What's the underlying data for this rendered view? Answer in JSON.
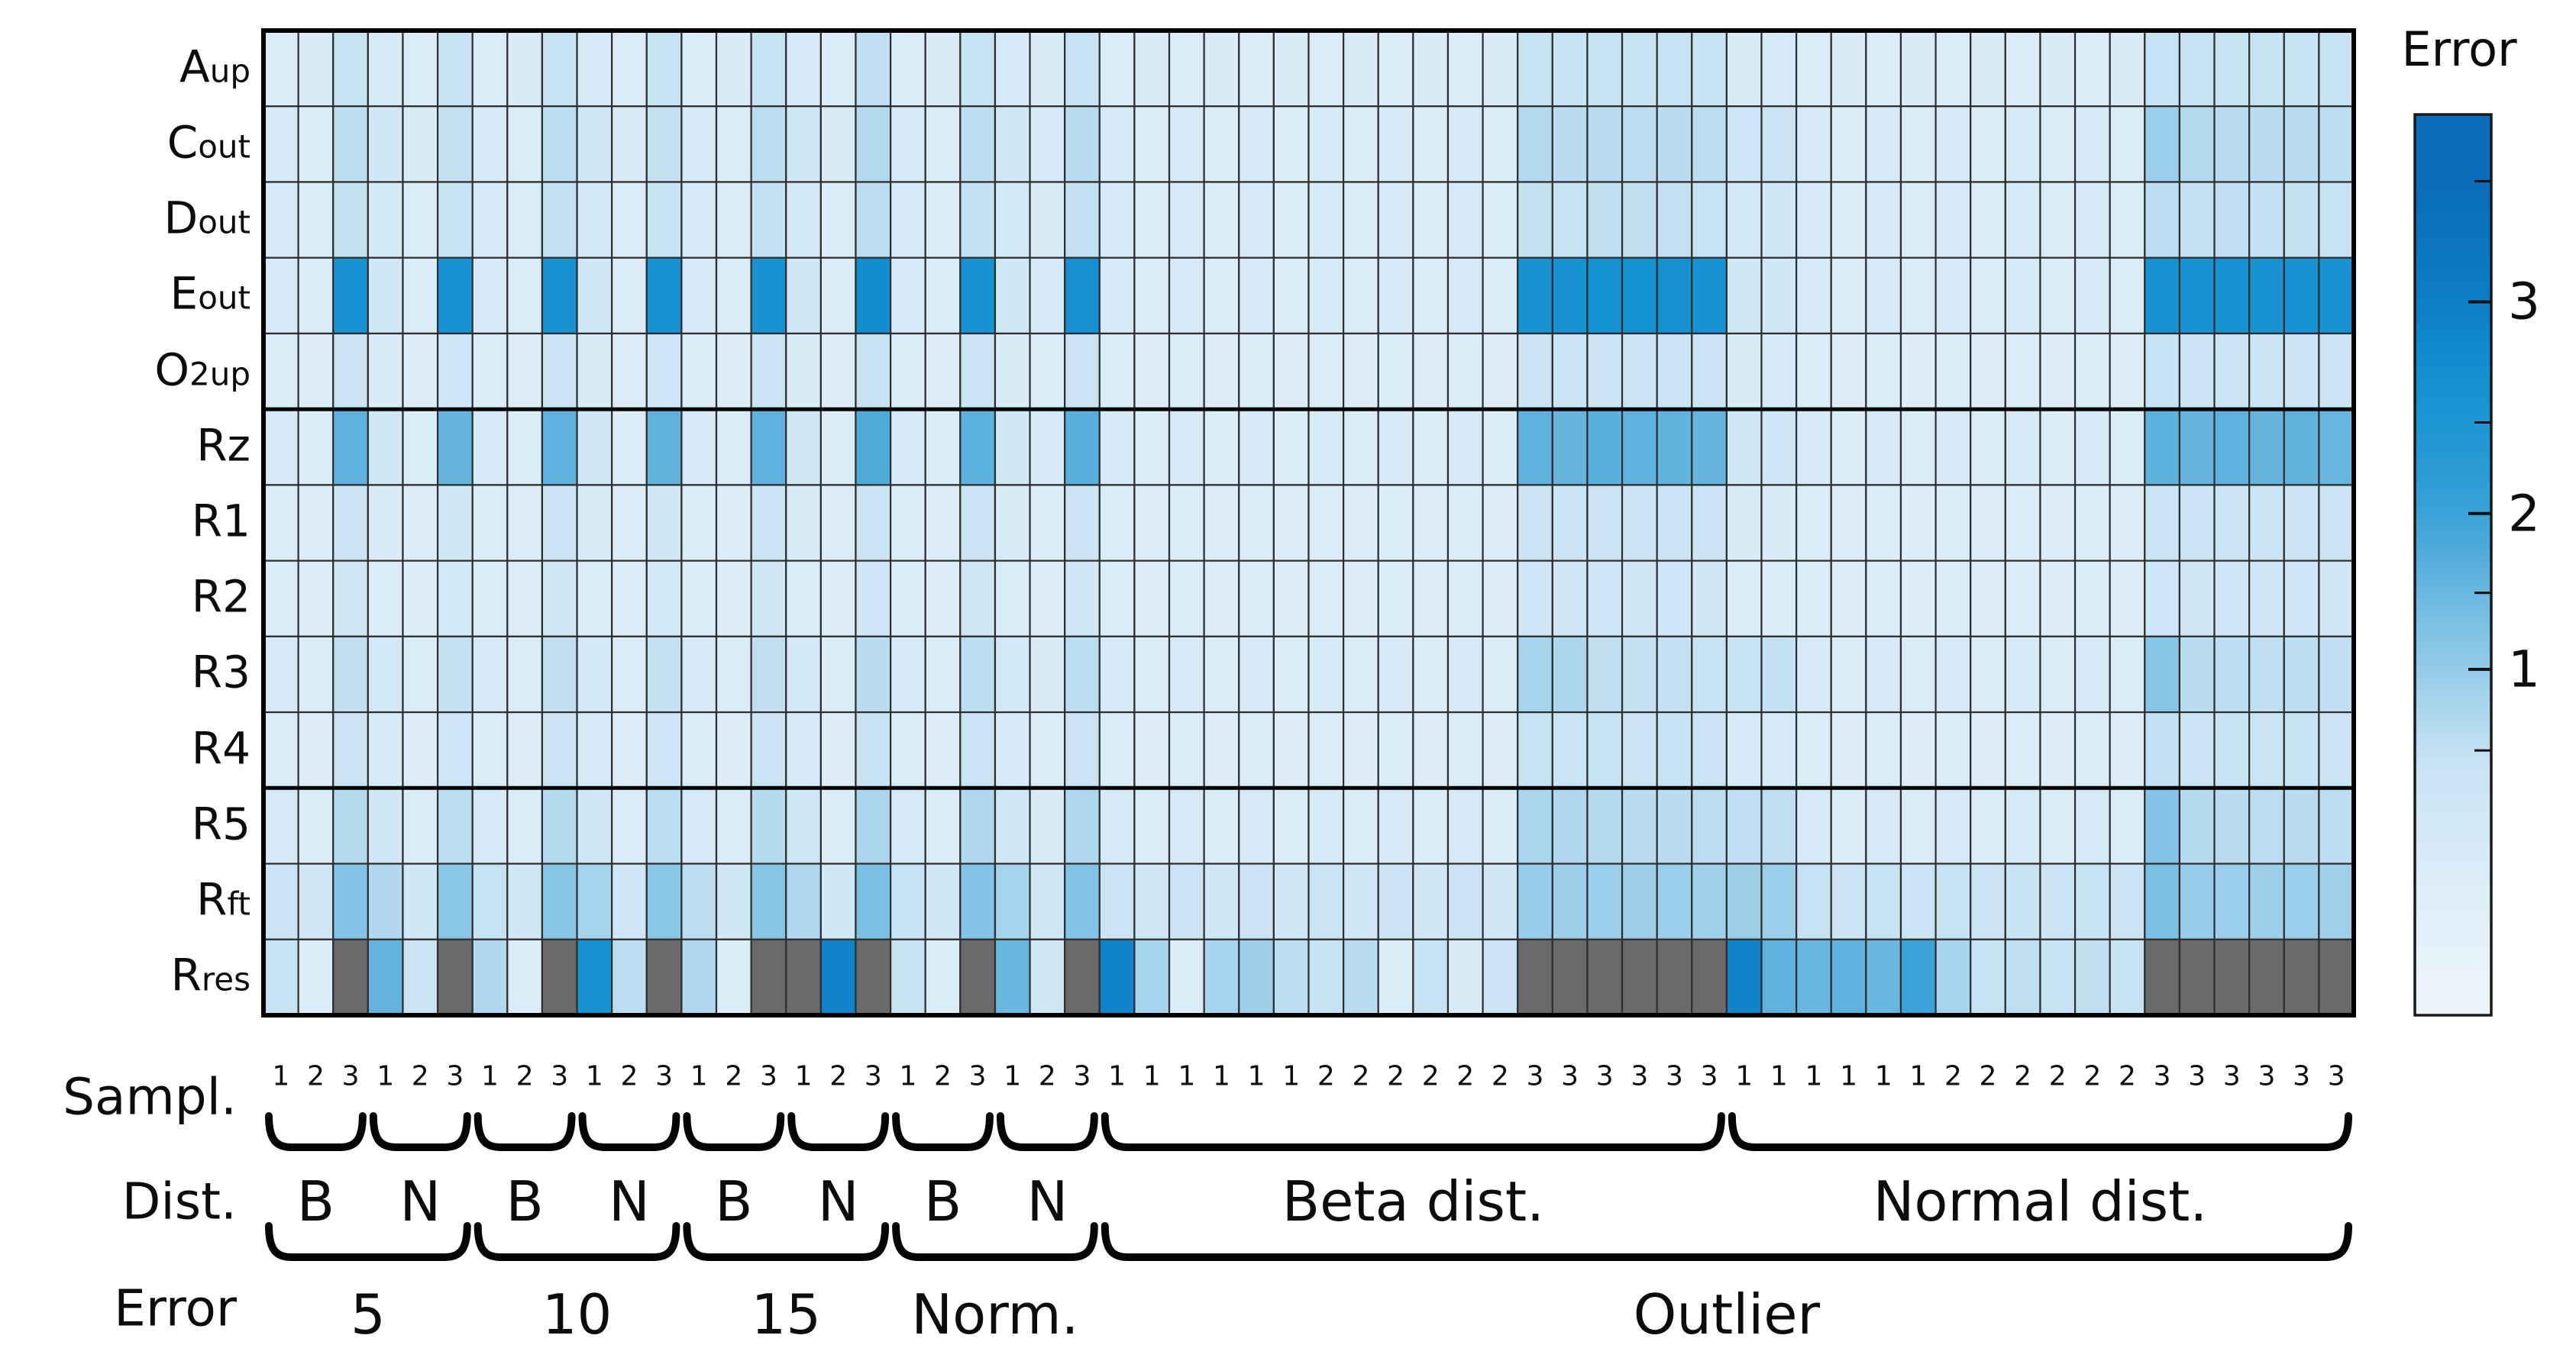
{
  "axes": {
    "sample_label": "Sampl.",
    "dist_label": "Dist.",
    "error_label": "Error"
  },
  "colorbar": {
    "title": "Error",
    "major_ticks": [
      {
        "label": "3",
        "pos": 0.208
      },
      {
        "label": "2",
        "pos": 0.443
      },
      {
        "label": "1",
        "pos": 0.616
      }
    ],
    "minor_ticks": [
      0.074,
      0.342,
      0.531,
      0.706
    ],
    "scale_anchors": [
      [
        0,
        3.7
      ],
      [
        0.074,
        3.5
      ],
      [
        0.208,
        3.0
      ],
      [
        0.342,
        2.5
      ],
      [
        0.443,
        2.0
      ],
      [
        0.531,
        1.5
      ],
      [
        0.616,
        1.0
      ],
      [
        0.706,
        0.5
      ],
      [
        1,
        0.05
      ]
    ]
  },
  "chart_data": {
    "type": "heatmap",
    "value_name": "Error",
    "gray_color": "#6a6a6a",
    "grid_color": "#2e2e2e",
    "border_color": "#000000",
    "colormap": [
      [
        0.0,
        "#f0f7fc"
      ],
      [
        0.28,
        "#dcedf8"
      ],
      [
        0.45,
        "#cbe4f4"
      ],
      [
        0.7,
        "#b0d8ee"
      ],
      [
        1.0,
        "#93cbe9"
      ],
      [
        1.3,
        "#7cc0e4"
      ],
      [
        1.6,
        "#5fb2dd"
      ],
      [
        2.0,
        "#3aa2d7"
      ],
      [
        2.4,
        "#2197d4"
      ],
      [
        2.7,
        "#1590d1"
      ],
      [
        3.0,
        "#0d7dc7"
      ],
      [
        3.5,
        "#0a6cba"
      ]
    ],
    "rows": [
      {
        "main": "A",
        "sfx": "up"
      },
      {
        "main": "C",
        "sfx": "out"
      },
      {
        "main": "D",
        "sfx": "out"
      },
      {
        "main": "E",
        "sfx": "out"
      },
      {
        "main": "O",
        "sfx": "2up"
      },
      {
        "main": "Rz",
        "sfx": ""
      },
      {
        "main": "R1",
        "sfx": ""
      },
      {
        "main": "R2",
        "sfx": ""
      },
      {
        "main": "R3",
        "sfx": ""
      },
      {
        "main": "R4",
        "sfx": ""
      },
      {
        "main": "R5",
        "sfx": ""
      },
      {
        "main": "R",
        "sfx": "ft"
      },
      {
        "main": "R",
        "sfx": "res"
      }
    ],
    "thick_separators_after_row": [
      4,
      9
    ],
    "sample_row": [
      "1",
      "2",
      "3",
      "1",
      "2",
      "3",
      "1",
      "2",
      "3",
      "1",
      "2",
      "3",
      "1",
      "2",
      "3",
      "1",
      "2",
      "3",
      "1",
      "2",
      "3",
      "1",
      "2",
      "3",
      "1",
      "1",
      "1",
      "1",
      "1",
      "1",
      "2",
      "2",
      "2",
      "2",
      "2",
      "2",
      "3",
      "3",
      "3",
      "3",
      "3",
      "3",
      "1",
      "1",
      "1",
      "1",
      "1",
      "1",
      "2",
      "2",
      "2",
      "2",
      "2",
      "2",
      "3",
      "3",
      "3",
      "3",
      "3",
      "3"
    ],
    "dist_groups": [
      {
        "label": "B",
        "start": 0,
        "end": 2
      },
      {
        "label": "N",
        "start": 3,
        "end": 5
      },
      {
        "label": "B",
        "start": 6,
        "end": 8
      },
      {
        "label": "N",
        "start": 9,
        "end": 11
      },
      {
        "label": "B",
        "start": 12,
        "end": 14
      },
      {
        "label": "N",
        "start": 15,
        "end": 17
      },
      {
        "label": "B",
        "start": 18,
        "end": 20
      },
      {
        "label": "N",
        "start": 21,
        "end": 23
      },
      {
        "label": "Beta dist.",
        "start": 24,
        "end": 41
      },
      {
        "label": "Normal dist.",
        "start": 42,
        "end": 59
      }
    ],
    "error_groups": [
      {
        "label": "5",
        "start": 0,
        "end": 5
      },
      {
        "label": "10",
        "start": 6,
        "end": 11
      },
      {
        "label": "15",
        "start": 12,
        "end": 17
      },
      {
        "label": "Norm.",
        "start": 18,
        "end": 23
      },
      {
        "label": "Outlier",
        "start": 24,
        "end": 59
      }
    ],
    "values": [
      [
        0.3,
        0.32,
        0.5,
        0.35,
        0.3,
        0.48,
        0.3,
        0.32,
        0.5,
        0.35,
        0.3,
        0.48,
        0.3,
        0.32,
        0.5,
        0.35,
        0.3,
        0.55,
        0.3,
        0.32,
        0.5,
        0.35,
        0.32,
        0.5,
        0.3,
        0.32,
        0.3,
        0.32,
        0.3,
        0.32,
        0.3,
        0.32,
        0.3,
        0.32,
        0.3,
        0.32,
        0.5,
        0.48,
        0.5,
        0.48,
        0.5,
        0.48,
        0.32,
        0.35,
        0.3,
        0.32,
        0.3,
        0.32,
        0.3,
        0.32,
        0.3,
        0.32,
        0.3,
        0.32,
        0.5,
        0.5,
        0.48,
        0.5,
        0.48,
        0.5
      ],
      [
        0.35,
        0.3,
        0.58,
        0.4,
        0.32,
        0.52,
        0.35,
        0.3,
        0.58,
        0.4,
        0.32,
        0.52,
        0.35,
        0.3,
        0.6,
        0.4,
        0.32,
        0.68,
        0.35,
        0.3,
        0.58,
        0.4,
        0.35,
        0.62,
        0.35,
        0.3,
        0.35,
        0.3,
        0.35,
        0.3,
        0.35,
        0.3,
        0.35,
        0.3,
        0.35,
        0.3,
        0.68,
        0.62,
        0.62,
        0.6,
        0.62,
        0.6,
        0.42,
        0.45,
        0.35,
        0.3,
        0.35,
        0.3,
        0.35,
        0.3,
        0.35,
        0.3,
        0.35,
        0.3,
        0.92,
        0.68,
        0.62,
        0.62,
        0.62,
        0.6
      ],
      [
        0.35,
        0.3,
        0.52,
        0.36,
        0.3,
        0.48,
        0.35,
        0.3,
        0.52,
        0.36,
        0.3,
        0.48,
        0.35,
        0.3,
        0.52,
        0.36,
        0.3,
        0.58,
        0.35,
        0.3,
        0.52,
        0.36,
        0.32,
        0.52,
        0.35,
        0.3,
        0.35,
        0.3,
        0.35,
        0.3,
        0.35,
        0.3,
        0.35,
        0.3,
        0.35,
        0.3,
        0.52,
        0.5,
        0.56,
        0.56,
        0.52,
        0.5,
        0.36,
        0.4,
        0.35,
        0.3,
        0.35,
        0.3,
        0.35,
        0.3,
        0.35,
        0.3,
        0.35,
        0.3,
        0.58,
        0.52,
        0.55,
        0.52,
        0.52,
        0.5
      ],
      [
        0.35,
        0.3,
        2.6,
        0.4,
        0.3,
        2.6,
        0.35,
        0.3,
        2.6,
        0.4,
        0.3,
        2.62,
        0.35,
        0.3,
        2.6,
        0.4,
        0.3,
        2.75,
        0.35,
        0.3,
        2.62,
        0.4,
        0.35,
        2.68,
        0.35,
        0.3,
        0.35,
        0.3,
        0.35,
        0.3,
        0.35,
        0.3,
        0.35,
        0.3,
        0.35,
        0.3,
        2.6,
        2.62,
        2.7,
        2.7,
        2.65,
        2.62,
        0.4,
        0.4,
        0.35,
        0.3,
        0.35,
        0.3,
        0.35,
        0.3,
        0.35,
        0.3,
        0.35,
        0.3,
        2.6,
        2.62,
        2.66,
        2.6,
        2.62,
        2.6
      ],
      [
        0.3,
        0.28,
        0.46,
        0.32,
        0.28,
        0.42,
        0.3,
        0.28,
        0.46,
        0.32,
        0.28,
        0.42,
        0.3,
        0.28,
        0.46,
        0.32,
        0.28,
        0.5,
        0.3,
        0.28,
        0.46,
        0.32,
        0.3,
        0.46,
        0.3,
        0.28,
        0.3,
        0.28,
        0.3,
        0.28,
        0.3,
        0.28,
        0.3,
        0.28,
        0.3,
        0.28,
        0.46,
        0.44,
        0.46,
        0.44,
        0.46,
        0.44,
        0.32,
        0.34,
        0.3,
        0.28,
        0.3,
        0.28,
        0.3,
        0.28,
        0.3,
        0.28,
        0.3,
        0.28,
        0.5,
        0.46,
        0.46,
        0.44,
        0.46,
        0.44
      ],
      [
        0.35,
        0.3,
        1.6,
        0.4,
        0.3,
        1.55,
        0.35,
        0.3,
        1.6,
        0.4,
        0.3,
        1.58,
        0.35,
        0.3,
        1.6,
        0.4,
        0.3,
        1.78,
        0.35,
        0.3,
        1.62,
        0.4,
        0.35,
        1.68,
        0.35,
        0.3,
        0.35,
        0.3,
        0.35,
        0.3,
        0.35,
        0.3,
        0.35,
        0.3,
        0.35,
        0.3,
        1.6,
        1.55,
        1.65,
        1.6,
        1.58,
        1.55,
        0.4,
        0.42,
        0.35,
        0.3,
        0.35,
        0.3,
        0.35,
        0.3,
        0.35,
        0.3,
        0.35,
        0.3,
        1.62,
        1.55,
        1.6,
        1.55,
        1.58,
        1.52
      ],
      [
        0.3,
        0.28,
        0.44,
        0.32,
        0.28,
        0.4,
        0.3,
        0.28,
        0.44,
        0.32,
        0.28,
        0.4,
        0.3,
        0.28,
        0.44,
        0.32,
        0.28,
        0.46,
        0.3,
        0.28,
        0.44,
        0.32,
        0.3,
        0.44,
        0.3,
        0.28,
        0.3,
        0.28,
        0.3,
        0.28,
        0.3,
        0.28,
        0.3,
        0.28,
        0.3,
        0.28,
        0.46,
        0.44,
        0.46,
        0.44,
        0.46,
        0.44,
        0.32,
        0.32,
        0.3,
        0.28,
        0.3,
        0.28,
        0.3,
        0.28,
        0.3,
        0.28,
        0.3,
        0.28,
        0.46,
        0.44,
        0.46,
        0.44,
        0.46,
        0.44
      ],
      [
        0.3,
        0.28,
        0.4,
        0.3,
        0.28,
        0.38,
        0.3,
        0.28,
        0.4,
        0.3,
        0.28,
        0.38,
        0.3,
        0.28,
        0.4,
        0.3,
        0.28,
        0.42,
        0.3,
        0.28,
        0.4,
        0.3,
        0.28,
        0.4,
        0.3,
        0.28,
        0.3,
        0.28,
        0.3,
        0.28,
        0.3,
        0.28,
        0.3,
        0.28,
        0.3,
        0.28,
        0.42,
        0.4,
        0.42,
        0.4,
        0.42,
        0.4,
        0.3,
        0.3,
        0.3,
        0.28,
        0.3,
        0.28,
        0.3,
        0.28,
        0.3,
        0.28,
        0.3,
        0.28,
        0.42,
        0.4,
        0.42,
        0.4,
        0.42,
        0.4
      ],
      [
        0.35,
        0.3,
        0.56,
        0.38,
        0.3,
        0.52,
        0.35,
        0.3,
        0.56,
        0.38,
        0.3,
        0.52,
        0.35,
        0.3,
        0.56,
        0.38,
        0.3,
        0.62,
        0.35,
        0.3,
        0.6,
        0.38,
        0.32,
        0.6,
        0.35,
        0.3,
        0.35,
        0.3,
        0.35,
        0.3,
        0.35,
        0.3,
        0.35,
        0.3,
        0.35,
        0.3,
        0.8,
        0.75,
        0.56,
        0.52,
        0.52,
        0.5,
        0.5,
        0.52,
        0.35,
        0.3,
        0.35,
        0.3,
        0.35,
        0.3,
        0.35,
        0.3,
        0.35,
        0.3,
        1.15,
        0.62,
        0.58,
        0.56,
        0.58,
        0.55
      ],
      [
        0.3,
        0.28,
        0.46,
        0.33,
        0.28,
        0.43,
        0.3,
        0.28,
        0.46,
        0.33,
        0.28,
        0.43,
        0.3,
        0.28,
        0.46,
        0.33,
        0.28,
        0.5,
        0.3,
        0.28,
        0.46,
        0.33,
        0.3,
        0.46,
        0.3,
        0.28,
        0.3,
        0.28,
        0.3,
        0.28,
        0.3,
        0.28,
        0.3,
        0.28,
        0.3,
        0.28,
        0.5,
        0.46,
        0.48,
        0.46,
        0.48,
        0.46,
        0.33,
        0.34,
        0.3,
        0.28,
        0.3,
        0.28,
        0.3,
        0.28,
        0.3,
        0.28,
        0.3,
        0.28,
        0.52,
        0.46,
        0.48,
        0.46,
        0.48,
        0.46
      ],
      [
        0.35,
        0.3,
        0.66,
        0.4,
        0.3,
        0.6,
        0.35,
        0.3,
        0.66,
        0.4,
        0.3,
        0.6,
        0.35,
        0.3,
        0.66,
        0.4,
        0.3,
        0.76,
        0.35,
        0.3,
        0.7,
        0.4,
        0.32,
        0.7,
        0.35,
        0.3,
        0.35,
        0.3,
        0.35,
        0.3,
        0.35,
        0.3,
        0.35,
        0.3,
        0.35,
        0.3,
        0.76,
        0.7,
        0.66,
        0.62,
        0.62,
        0.6,
        0.55,
        0.56,
        0.35,
        0.3,
        0.35,
        0.3,
        0.35,
        0.3,
        0.35,
        0.3,
        0.35,
        0.3,
        1.2,
        0.66,
        0.62,
        0.6,
        0.62,
        0.6
      ],
      [
        0.45,
        0.4,
        1.2,
        0.7,
        0.4,
        1.1,
        0.5,
        0.4,
        1.16,
        0.8,
        0.4,
        1.1,
        0.6,
        0.4,
        1.16,
        0.7,
        0.4,
        1.32,
        0.5,
        0.4,
        1.2,
        0.8,
        0.4,
        1.22,
        0.46,
        0.4,
        0.46,
        0.4,
        0.46,
        0.4,
        0.46,
        0.4,
        0.46,
        0.4,
        0.46,
        0.4,
        0.95,
        0.9,
        0.92,
        0.9,
        0.92,
        0.88,
        0.9,
        0.92,
        0.5,
        0.45,
        0.5,
        0.45,
        0.5,
        0.45,
        0.5,
        0.45,
        0.5,
        0.45,
        1.32,
        0.95,
        0.92,
        0.9,
        0.92,
        0.88
      ],
      [
        0.5,
        0.3,
        "x",
        1.55,
        0.45,
        "x",
        0.7,
        0.3,
        "x",
        2.6,
        0.6,
        "x",
        0.7,
        0.3,
        "x",
        "x",
        2.9,
        "x",
        0.5,
        0.3,
        "x",
        1.5,
        0.4,
        "x",
        2.9,
        0.8,
        0.3,
        0.8,
        0.9,
        0.6,
        0.5,
        0.62,
        0.3,
        0.5,
        0.32,
        0.45,
        "x",
        "x",
        "x",
        "x",
        "x",
        "x",
        2.9,
        1.6,
        1.5,
        1.6,
        1.5,
        2.0,
        0.8,
        0.5,
        0.56,
        0.5,
        0.56,
        0.5,
        "x",
        "x",
        "x",
        "x",
        "x",
        "x"
      ]
    ]
  }
}
